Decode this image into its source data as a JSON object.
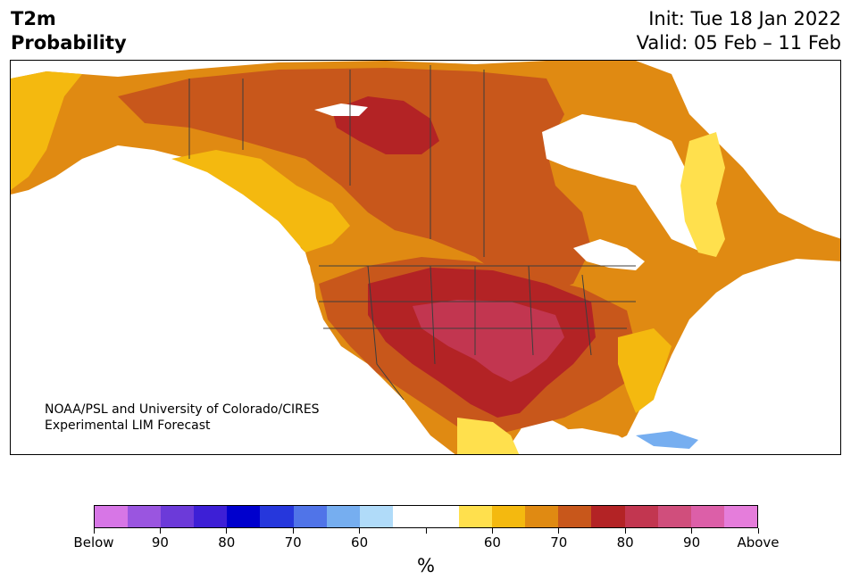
{
  "header": {
    "variable": "T2m",
    "quantity": "Probability",
    "init": "Init: Tue 18 Jan 2022",
    "valid": "Valid: 05 Feb – 11 Feb"
  },
  "credit": {
    "line1": "NOAA/PSL and University of Colorado/CIRES",
    "line2": "Experimental LIM Forecast"
  },
  "colorbar": {
    "unit": "%",
    "colors": [
      "#d776e6",
      "#9a55e0",
      "#6c3ad9",
      "#3d1fd6",
      "#0000cd",
      "#2637dc",
      "#5074e8",
      "#76aef0",
      "#b0dbf9",
      "#ffffff",
      "#ffffff",
      "#ffe04d",
      "#f4b90f",
      "#e08a12",
      "#c8571b",
      "#b32325",
      "#c23650",
      "#d04e7c",
      "#dc5fa8",
      "#e57ddb"
    ],
    "labels": [
      "Below",
      "90",
      "80",
      "70",
      "60",
      "",
      "60",
      "70",
      "80",
      "90",
      "Above"
    ]
  },
  "map": {
    "region": "North America",
    "ocean_color": "#ffffff",
    "border_color": "#3d3d3d"
  }
}
